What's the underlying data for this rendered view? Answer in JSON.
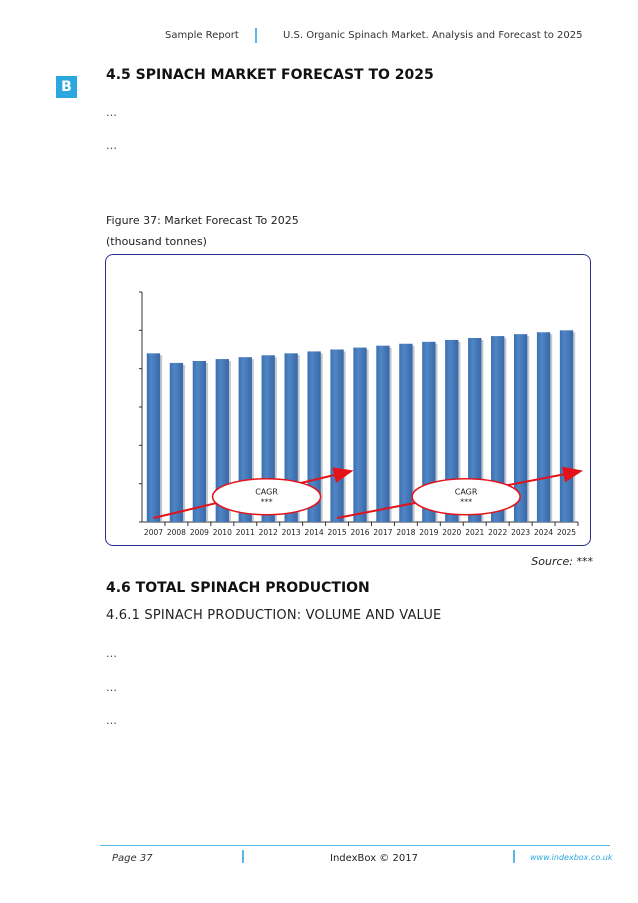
{
  "header": {
    "left": "Sample Report",
    "right": "U.S. Organic Spinach Market. Analysis and Forecast to 2025"
  },
  "logo": {
    "letter": "B"
  },
  "section_45": {
    "title": "4.5 SPINACH MARKET FORECAST TO 2025",
    "paragraphs": [
      "…",
      "…"
    ]
  },
  "figure": {
    "caption": "Figure 37: Market Forecast To 2025",
    "unit": "(thousand tonnes)",
    "source": "Source: ***"
  },
  "chart_data": {
    "type": "bar",
    "categories": [
      "2007",
      "2008",
      "2009",
      "2010",
      "2011",
      "2012",
      "2013",
      "2014",
      "2015",
      "2016",
      "2017",
      "2018",
      "2019",
      "2020",
      "2021",
      "2022",
      "2023",
      "2024",
      "2025"
    ],
    "values": [
      88,
      83,
      84,
      85,
      86,
      87,
      88,
      89,
      90,
      91,
      92,
      93,
      94,
      95,
      96,
      97,
      98,
      99,
      100
    ],
    "ylim": [
      0,
      120
    ],
    "grid": false,
    "bar_color": "#4f86c6",
    "annotations": [
      {
        "label_top": "CAGR",
        "label_bottom": "***",
        "from_category": "2007",
        "to_category": "2015"
      },
      {
        "label_top": "CAGR",
        "label_bottom": "***",
        "from_category": "2015",
        "to_category": "2025"
      }
    ],
    "annotation_color": "#e3131b"
  },
  "section_46": {
    "title": "4.6 TOTAL SPINACH PRODUCTION",
    "subtitle": "4.6.1 SPINACH PRODUCTION: VOLUME AND VALUE",
    "paragraphs": [
      "…",
      "…",
      "…"
    ]
  },
  "footer": {
    "page": "Page 37",
    "center": "IndexBox © 2017",
    "url": "www.indexbox.co.uk"
  }
}
